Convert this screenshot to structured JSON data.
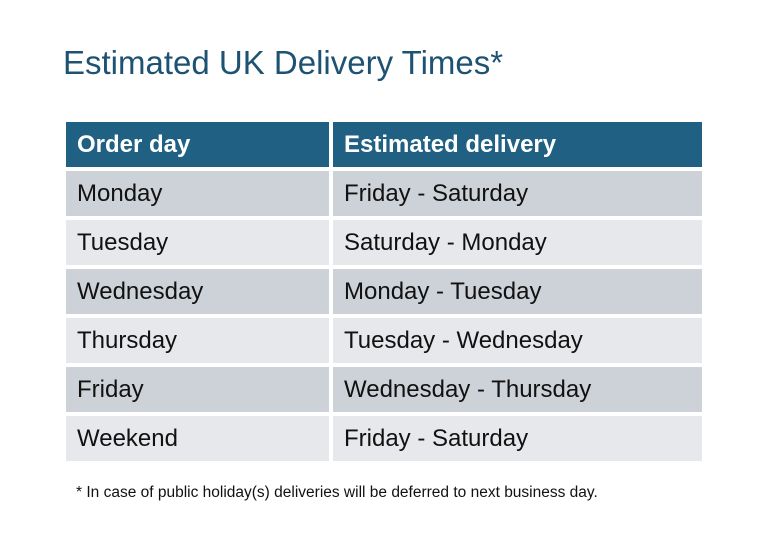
{
  "title": "Estimated UK Delivery Times*",
  "table": {
    "headers": [
      "Order day",
      "Estimated delivery"
    ],
    "rows": [
      [
        "Monday",
        "Friday - Saturday"
      ],
      [
        "Tuesday",
        "Saturday - Monday"
      ],
      [
        "Wednesday",
        "Monday - Tuesday"
      ],
      [
        "Thursday",
        "Tuesday - Wednesday"
      ],
      [
        "Friday",
        "Wednesday - Thursday"
      ],
      [
        "Weekend",
        "Friday - Saturday"
      ]
    ]
  },
  "footnote": "* In case of public holiday(s) deliveries will be deferred to next business day.",
  "colors": {
    "title": "#1e5272",
    "header_bg": "#206082",
    "row_dark": "#cdd1d8",
    "row_light": "#e6e8eb"
  }
}
